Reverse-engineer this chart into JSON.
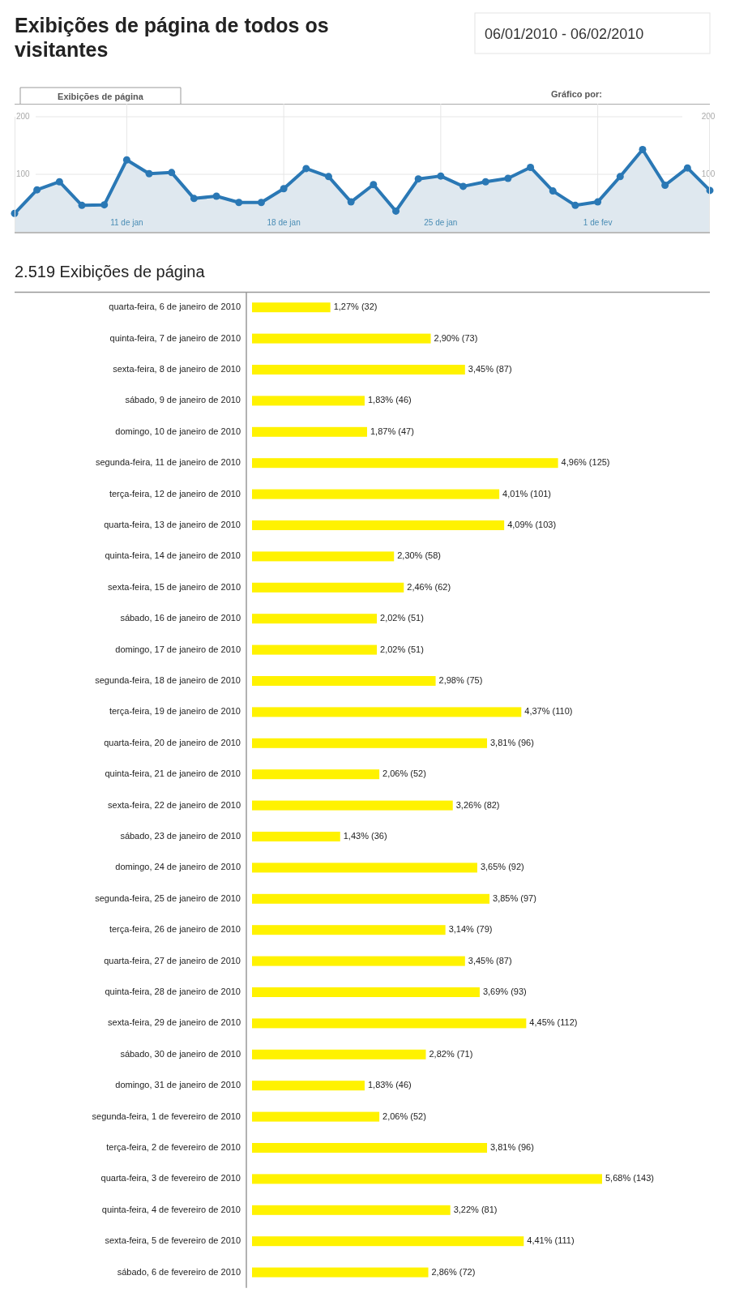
{
  "chart_data": [
    {
      "type": "area",
      "title": "Exibições de página de todos os visitantes",
      "subtitle": "06/01/2010 - 06/02/2010",
      "annotations": [
        "Exibições de página",
        "Gráfico por:"
      ],
      "x": [
        "2010-01-06",
        "2010-01-07",
        "2010-01-08",
        "2010-01-09",
        "2010-01-10",
        "2010-01-11",
        "2010-01-12",
        "2010-01-13",
        "2010-01-14",
        "2010-01-15",
        "2010-01-16",
        "2010-01-17",
        "2010-01-18",
        "2010-01-19",
        "2010-01-20",
        "2010-01-21",
        "2010-01-22",
        "2010-01-23",
        "2010-01-24",
        "2010-01-25",
        "2010-01-26",
        "2010-01-27",
        "2010-01-28",
        "2010-01-29",
        "2010-01-30",
        "2010-01-31",
        "2010-02-01",
        "2010-02-02",
        "2010-02-03",
        "2010-02-04",
        "2010-02-05",
        "2010-02-06"
      ],
      "values": [
        32,
        73,
        87,
        46,
        47,
        125,
        101,
        103,
        58,
        62,
        51,
        51,
        75,
        110,
        96,
        52,
        82,
        36,
        92,
        97,
        79,
        87,
        93,
        112,
        71,
        46,
        52,
        96,
        143,
        81,
        111,
        72
      ],
      "color": "#2a78b5",
      "marker": "circle",
      "grid": true,
      "xlim": [
        "2010-01-06",
        "2010-02-06"
      ],
      "xticks": [
        {
          "value": "2010-01-11",
          "label": "11 de jan"
        },
        {
          "value": "2010-01-18",
          "label": "18 de jan"
        },
        {
          "value": "2010-01-25",
          "label": "25 de jan"
        },
        {
          "value": "2010-02-01",
          "label": "1 de fev"
        }
      ],
      "ylim": [
        0,
        200
      ],
      "yticks": [
        100,
        200
      ],
      "y2lim": [
        0,
        200
      ],
      "y2ticks": [
        100,
        200
      ]
    },
    {
      "type": "bar",
      "orientation": "horizontal",
      "title": "2.519 Exibições de página",
      "color": "#fff200",
      "categories": [
        "quarta-feira, 6 de janeiro de 2010",
        "quinta-feira, 7 de janeiro de 2010",
        "sexta-feira, 8 de janeiro de 2010",
        "sábado, 9 de janeiro de 2010",
        "domingo, 10 de janeiro de 2010",
        "segunda-feira, 11 de janeiro de 2010",
        "terça-feira, 12 de janeiro de 2010",
        "quarta-feira, 13 de janeiro de 2010",
        "quinta-feira, 14 de janeiro de 2010",
        "sexta-feira, 15 de janeiro de 2010",
        "sábado, 16 de janeiro de 2010",
        "domingo, 17 de janeiro de 2010",
        "segunda-feira, 18 de janeiro de 2010",
        "terça-feira, 19 de janeiro de 2010",
        "quarta-feira, 20 de janeiro de 2010",
        "quinta-feira, 21 de janeiro de 2010",
        "sexta-feira, 22 de janeiro de 2010",
        "sábado, 23 de janeiro de 2010",
        "domingo, 24 de janeiro de 2010",
        "segunda-feira, 25 de janeiro de 2010",
        "terça-feira, 26 de janeiro de 2010",
        "quarta-feira, 27 de janeiro de 2010",
        "quinta-feira, 28 de janeiro de 2010",
        "sexta-feira, 29 de janeiro de 2010",
        "sábado, 30 de janeiro de 2010",
        "domingo, 31 de janeiro de 2010",
        "segunda-feira, 1 de fevereiro de 2010",
        "terça-feira, 2 de fevereiro de 2010",
        "quarta-feira, 3 de fevereiro de 2010",
        "quinta-feira, 4 de fevereiro de 2010",
        "sexta-feira, 5 de fevereiro de 2010",
        "sábado, 6 de fevereiro de 2010"
      ],
      "values": [
        32,
        73,
        87,
        46,
        47,
        125,
        101,
        103,
        58,
        62,
        51,
        51,
        75,
        110,
        96,
        52,
        82,
        36,
        92,
        97,
        79,
        87,
        93,
        112,
        71,
        46,
        52,
        96,
        143,
        81,
        111,
        72
      ],
      "value_labels": [
        "1,27% (32)",
        "2,90% (73)",
        "3,45% (87)",
        "1,83% (46)",
        "1,87% (47)",
        "4,96% (125)",
        "4,01% (101)",
        "4,09% (103)",
        "2,30% (58)",
        "2,46% (62)",
        "2,02% (51)",
        "2,02% (51)",
        "2,98% (75)",
        "4,37% (110)",
        "3,81% (96)",
        "2,06% (52)",
        "3,26% (82)",
        "1,43% (36)",
        "3,65% (92)",
        "3,85% (97)",
        "3,14% (79)",
        "3,45% (87)",
        "3,69% (93)",
        "4,45% (112)",
        "2,82% (71)",
        "1,83% (46)",
        "2,06% (52)",
        "3,81% (96)",
        "5,68% (143)",
        "3,22% (81)",
        "4,41% (111)",
        "2,86% (72)"
      ]
    }
  ]
}
